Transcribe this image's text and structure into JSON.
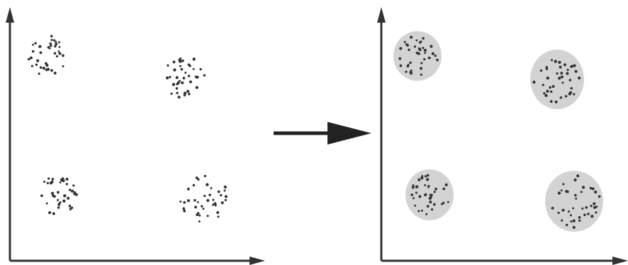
{
  "colors": {
    "axis": "#333333",
    "dots": "#333333",
    "arrow": "#222222",
    "cluster_fill": "#d3d3d3"
  },
  "panels": [
    {
      "name": "raw-data",
      "shaded": false,
      "clusters": [
        "top-left",
        "top-right",
        "bottom-left",
        "bottom-right"
      ]
    },
    {
      "name": "clustered-data",
      "shaded": true,
      "clusters": [
        "top-left",
        "top-right",
        "bottom-left",
        "bottom-right"
      ]
    }
  ],
  "transition": {
    "icon": "right-arrow-icon"
  }
}
